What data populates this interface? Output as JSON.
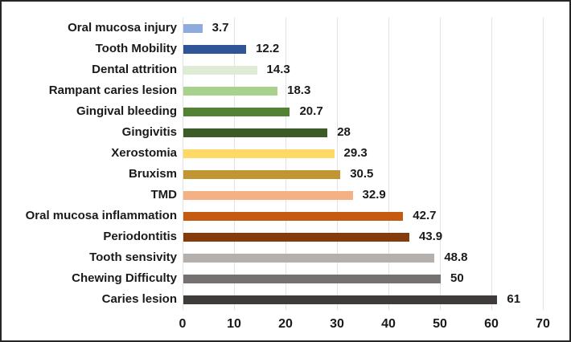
{
  "chart_data": {
    "type": "bar",
    "orientation": "horizontal",
    "title": "",
    "xlabel": "",
    "ylabel": "",
    "categories": [
      "Oral mucosa injury",
      "Tooth Mobility",
      "Dental attrition",
      "Rampant caries lesion",
      "Gingival bleeding",
      "Gingivitis",
      "Xerostomia",
      "Bruxism",
      "TMD",
      "Oral mucosa inflammation",
      "Periodontitis",
      "Tooth sensivity",
      "Chewing Difficulty",
      "Caries lesion"
    ],
    "values": [
      3.7,
      12.2,
      14.3,
      18.3,
      20.7,
      28,
      29.3,
      30.5,
      32.9,
      42.7,
      43.9,
      48.8,
      50,
      61
    ],
    "value_labels": [
      "3.7",
      "12.2",
      "14.3",
      "18.3",
      "20.7",
      "28",
      "29.3",
      "30.5",
      "32.9",
      "42.7",
      "43.9",
      "48.8",
      "50",
      "61"
    ],
    "bar_colors": [
      "#8FAADC",
      "#2F5597",
      "#DFECD5",
      "#A9D18E",
      "#548235",
      "#3D5B26",
      "#FFD966",
      "#BF9632",
      "#F4B183",
      "#C55A11",
      "#843C0C",
      "#B4B0AD",
      "#767171",
      "#3F3B3B"
    ],
    "x_ticks": [
      "0",
      "10",
      "20",
      "30",
      "40",
      "50",
      "60",
      "70"
    ],
    "xlim": [
      0,
      70
    ],
    "grid": "vertical",
    "legend": "none",
    "grid_color": "#E2E2E2",
    "text_color": "#1A1A1A",
    "frame_color": "#262626"
  }
}
